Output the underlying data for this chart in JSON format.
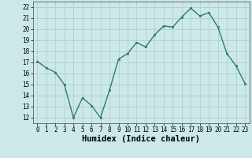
{
  "x": [
    0,
    1,
    2,
    3,
    4,
    5,
    6,
    7,
    8,
    9,
    10,
    11,
    12,
    13,
    14,
    15,
    16,
    17,
    18,
    19,
    20,
    21,
    22,
    23
  ],
  "y": [
    17.1,
    16.5,
    16.1,
    15.0,
    12.0,
    13.8,
    13.1,
    12.0,
    14.5,
    17.3,
    17.8,
    18.8,
    18.4,
    19.5,
    20.3,
    20.2,
    21.1,
    21.9,
    21.2,
    21.5,
    20.2,
    17.8,
    16.7,
    15.1
  ],
  "xlim": [
    -0.5,
    23.5
  ],
  "ylim": [
    11.5,
    22.5
  ],
  "yticks": [
    12,
    13,
    14,
    15,
    16,
    17,
    18,
    19,
    20,
    21,
    22
  ],
  "xticks": [
    0,
    1,
    2,
    3,
    4,
    5,
    6,
    7,
    8,
    9,
    10,
    11,
    12,
    13,
    14,
    15,
    16,
    17,
    18,
    19,
    20,
    21,
    22,
    23
  ],
  "xlabel": "Humidex (Indice chaleur)",
  "line_color": "#2e7d6e",
  "marker": "s",
  "marker_size": 2.0,
  "bg_color": "#cce8e8",
  "grid_color": "#b0d0d0",
  "xlabel_fontsize": 7.5,
  "tick_fontsize": 5.5,
  "line_width": 1.0
}
